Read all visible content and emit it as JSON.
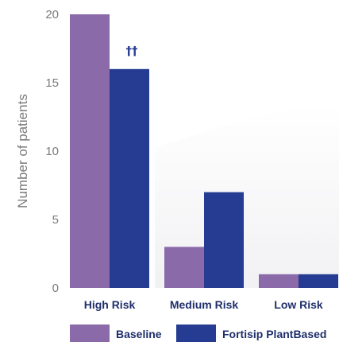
{
  "chart_data": {
    "type": "bar",
    "categories": [
      "High Risk",
      "Medium Risk",
      "Low Risk"
    ],
    "series": [
      {
        "name": "Baseline",
        "values": [
          20,
          3,
          1
        ],
        "color": "#8a6aa8"
      },
      {
        "name": "Fortisip PlantBased",
        "values": [
          16,
          7,
          1
        ],
        "color": "#253c92"
      }
    ],
    "ylabel": "Number of patients",
    "xlabel": "",
    "ylim": [
      0,
      20
    ],
    "yticks": [
      0,
      5,
      10,
      15,
      20
    ],
    "grid": false,
    "legend": "bottom",
    "annotations": [
      {
        "text": "††",
        "category": "High Risk",
        "series": "Fortisip PlantBased"
      }
    ]
  }
}
